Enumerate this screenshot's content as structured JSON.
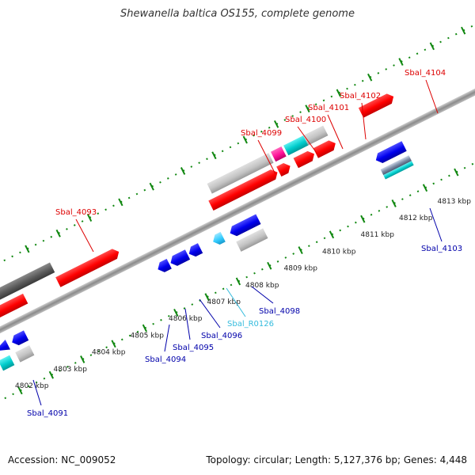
{
  "header": {
    "title": "Shewanella baltica OS155, complete genome"
  },
  "footer": {
    "accession": "Accession: NC_009052",
    "info": "Topology: circular; Length: 5,127,376 bp; Genes: 4,448"
  },
  "colors": {
    "red": "#ff0000",
    "blue": "#0000dd",
    "cyan": "#00cccc",
    "lightblue": "#33ccff",
    "magenta": "#ff1199",
    "gray": "#bfbfbf",
    "darkgray": "#555555",
    "tick": "#118811",
    "red_label": "#dd0000",
    "blue_label": "#0000aa",
    "cyan_label": "#33bbdd"
  },
  "ruler_labels": [
    {
      "value": 4802,
      "label": "4802 kbp"
    },
    {
      "value": 4803,
      "label": "4803 kbp"
    },
    {
      "value": 4804,
      "label": "4804 kbp"
    },
    {
      "value": 4805,
      "label": "4805 kbp"
    },
    {
      "value": 4806,
      "label": "4806 kbp"
    },
    {
      "value": 4807,
      "label": "4807 kbp"
    },
    {
      "value": 4808,
      "label": "4808 kbp"
    },
    {
      "value": 4809,
      "label": "4809 kbp"
    },
    {
      "value": 4810,
      "label": "4810 kbp"
    },
    {
      "value": 4811,
      "label": "4811 kbp"
    },
    {
      "value": 4812,
      "label": "4812 kbp"
    },
    {
      "value": 4813,
      "label": "4813 kbp"
    }
  ],
  "gene_labels": [
    {
      "name": "Sbal_4091",
      "color": "blue_label"
    },
    {
      "name": "Sbal_4093",
      "color": "red_label"
    },
    {
      "name": "Sbal_4094",
      "color": "blue_label"
    },
    {
      "name": "Sbal_4095",
      "color": "blue_label"
    },
    {
      "name": "Sbal_4096",
      "color": "blue_label"
    },
    {
      "name": "Sbal_R0126",
      "color": "cyan_label"
    },
    {
      "name": "Sbal_4098",
      "color": "blue_label"
    },
    {
      "name": "Sbal_4099",
      "color": "red_label"
    },
    {
      "name": "Sbal_4100",
      "color": "red_label"
    },
    {
      "name": "Sbal_4101",
      "color": "red_label"
    },
    {
      "name": "Sbal_4102",
      "color": "red_label"
    },
    {
      "name": "Sbal_4103",
      "color": "blue_label"
    },
    {
      "name": "Sbal_4104",
      "color": "red_label"
    }
  ]
}
